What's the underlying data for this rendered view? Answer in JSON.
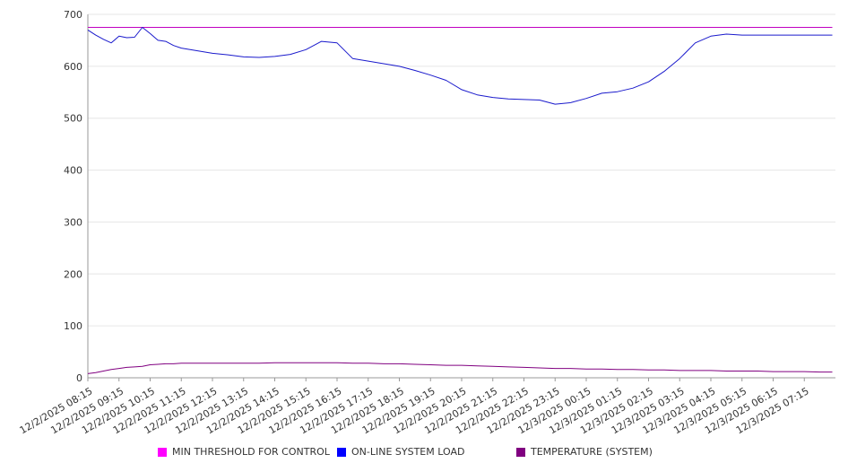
{
  "chart_data": {
    "type": "line",
    "title": "",
    "xlabel": "",
    "ylabel": "",
    "ylim": [
      0,
      700
    ],
    "yticks": [
      0,
      100,
      200,
      300,
      400,
      500,
      600,
      700
    ],
    "grid": true,
    "legend_position": "bottom",
    "x_tick_labels": [
      "12/2/2025 08:15",
      "12/2/2025 09:15",
      "12/2/2025 10:15",
      "12/2/2025 11:15",
      "12/2/2025 12:15",
      "12/2/2025 13:15",
      "12/2/2025 14:15",
      "12/2/2025 15:15",
      "12/2/2025 16:15",
      "12/2/2025 17:15",
      "12/2/2025 18:15",
      "12/2/2025 19:15",
      "12/2/2025 20:15",
      "12/2/2025 21:15",
      "12/2/2025 22:15",
      "12/2/2025 23:15",
      "12/3/2025 00:15",
      "12/3/2025 01:15",
      "12/3/2025 02:15",
      "12/3/2025 03:15",
      "12/3/2025 04:15",
      "12/3/2025 05:15",
      "12/3/2025 06:15",
      "12/3/2025 07:15"
    ],
    "x_hours": [
      0,
      0.25,
      0.5,
      0.75,
      1,
      1.25,
      1.5,
      1.75,
      2,
      2.25,
      2.5,
      2.75,
      3,
      3.5,
      4,
      4.5,
      5,
      5.5,
      6,
      6.5,
      7,
      7.5,
      8,
      8.5,
      9,
      9.5,
      10,
      10.5,
      11,
      11.5,
      12,
      12.5,
      13,
      13.5,
      14,
      14.5,
      15,
      15.5,
      16,
      16.5,
      17,
      17.5,
      18,
      18.5,
      19,
      19.5,
      20,
      20.5,
      21,
      21.5,
      22,
      22.5,
      23,
      23.5,
      23.9
    ],
    "series": [
      {
        "name": "MIN THRESHOLD FOR CONTROL",
        "color": "#ff00ff",
        "line_color": "#c000c0",
        "values": [
          675,
          675,
          675,
          675,
          675,
          675,
          675,
          675,
          675,
          675,
          675,
          675,
          675,
          675,
          675,
          675,
          675,
          675,
          675,
          675,
          675,
          675,
          675,
          675,
          675,
          675,
          675,
          675,
          675,
          675,
          675,
          675,
          675,
          675,
          675,
          675,
          675,
          675,
          675,
          675,
          675,
          675,
          675,
          675,
          675,
          675,
          675,
          675,
          675,
          675,
          675,
          675,
          675,
          675,
          675
        ]
      },
      {
        "name": "ON-LINE SYSTEM LOAD",
        "color": "#0000ff",
        "line_color": "#1a1acc",
        "values": [
          670,
          660,
          652,
          645,
          658,
          655,
          656,
          675,
          663,
          650,
          648,
          640,
          635,
          630,
          625,
          622,
          618,
          617,
          619,
          623,
          632,
          648,
          645,
          615,
          610,
          605,
          600,
          592,
          583,
          573,
          555,
          545,
          540,
          537,
          536,
          535,
          527,
          530,
          538,
          548,
          551,
          558,
          570,
          590,
          615,
          645,
          658,
          662,
          660,
          660,
          660,
          660,
          660,
          660,
          660
        ]
      },
      {
        "name": "TEMPERATURE (SYSTEM)",
        "color": "#800080",
        "line_color": "#800080",
        "values": [
          8,
          10,
          13,
          16,
          18,
          20,
          21,
          22,
          25,
          26,
          27,
          27,
          28,
          28,
          28,
          28,
          28,
          28,
          29,
          29,
          29,
          29,
          29,
          28,
          28,
          27,
          27,
          26,
          25,
          24,
          24,
          23,
          22,
          21,
          20,
          19,
          18,
          18,
          17,
          17,
          16,
          16,
          15,
          15,
          14,
          14,
          14,
          13,
          13,
          13,
          12,
          12,
          12,
          11,
          11
        ]
      }
    ]
  }
}
